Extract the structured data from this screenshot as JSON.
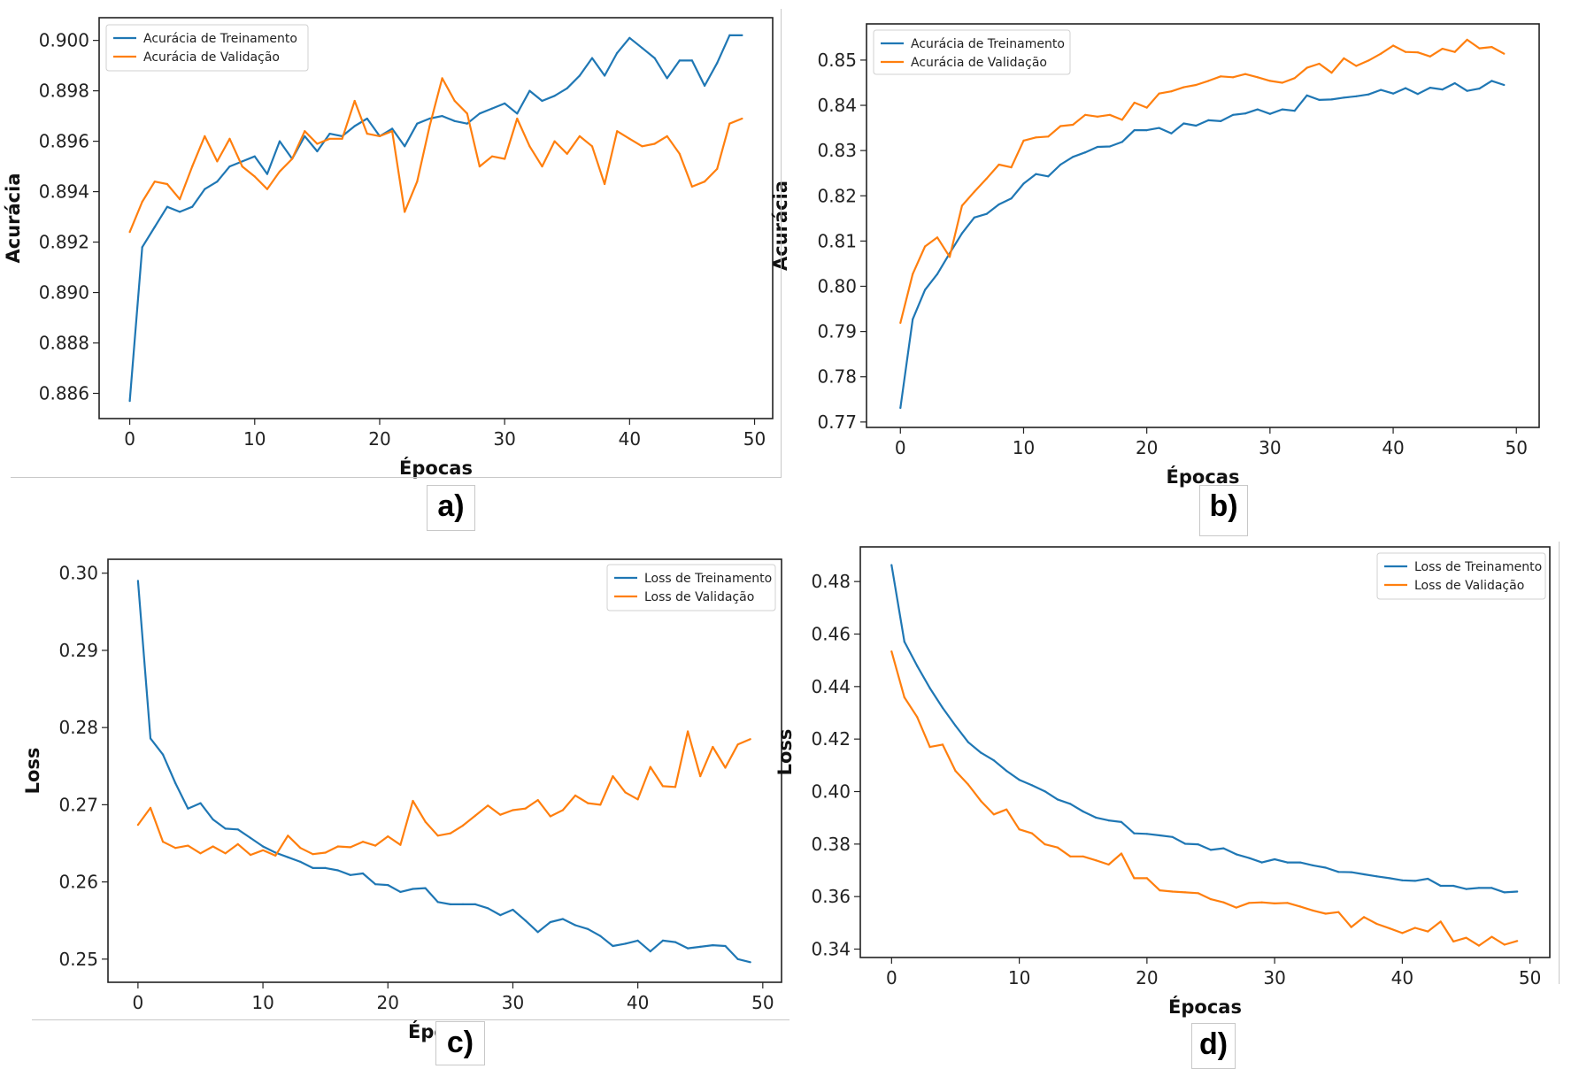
{
  "figure": {
    "panel_labels": [
      "a)",
      "b)",
      "c)",
      "d)"
    ]
  },
  "chart_data": [
    {
      "id": "a",
      "type": "line",
      "title": "",
      "xlabel": "Épocas",
      "ylabel": "Acurácia",
      "xlim": [
        -2.45,
        51.45
      ],
      "ylim": [
        0.885,
        0.9009
      ],
      "xticks": [
        0,
        10,
        20,
        30,
        40,
        50
      ],
      "xtick_labels": [
        "0",
        "10",
        "20",
        "30",
        "40",
        "50"
      ],
      "yticks": [
        0.886,
        0.888,
        0.89,
        0.892,
        0.894,
        0.896,
        0.898,
        0.9
      ],
      "ytick_labels": [
        "0.886",
        "0.888",
        "0.890",
        "0.892",
        "0.894",
        "0.896",
        "0.898",
        "0.900"
      ],
      "grid": false,
      "legend_position": "top-left",
      "x": [
        0,
        1,
        2,
        3,
        4,
        5,
        6,
        7,
        8,
        9,
        10,
        11,
        12,
        13,
        14,
        15,
        16,
        17,
        18,
        19,
        20,
        21,
        22,
        23,
        24,
        25,
        26,
        27,
        28,
        29,
        30,
        31,
        32,
        33,
        34,
        35,
        36,
        37,
        38,
        39,
        40,
        41,
        42,
        43,
        44,
        45,
        46,
        47,
        48,
        49
      ],
      "series": [
        {
          "name": "Acurácia de Treinamento",
          "color": "#1f77b4",
          "values": [
            0.8857,
            0.8918,
            0.8926,
            0.8934,
            0.8932,
            0.8934,
            0.8941,
            0.8944,
            0.895,
            0.8952,
            0.8954,
            0.8947,
            0.896,
            0.8953,
            0.8962,
            0.8956,
            0.8963,
            0.8962,
            0.8966,
            0.8969,
            0.8962,
            0.8965,
            0.8958,
            0.8967,
            0.8969,
            0.897,
            0.8968,
            0.8967,
            0.8971,
            0.8973,
            0.8975,
            0.8971,
            0.898,
            0.8976,
            0.8978,
            0.8981,
            0.8986,
            0.8993,
            0.8986,
            0.8995,
            0.9001,
            0.8997,
            0.8993,
            0.8985,
            0.8992,
            0.8992,
            0.8982,
            0.8991,
            0.9002,
            0.9002
          ]
        },
        {
          "name": "Acurácia de Validação",
          "color": "#ff7f0e",
          "values": [
            0.8924,
            0.8936,
            0.8944,
            0.8943,
            0.8937,
            0.895,
            0.8962,
            0.8952,
            0.8961,
            0.895,
            0.8946,
            0.8941,
            0.8948,
            0.8953,
            0.8964,
            0.8959,
            0.8961,
            0.8961,
            0.8976,
            0.8963,
            0.8962,
            0.8964,
            0.8932,
            0.8944,
            0.8966,
            0.8985,
            0.8976,
            0.8971,
            0.895,
            0.8954,
            0.8953,
            0.8969,
            0.8958,
            0.895,
            0.896,
            0.8955,
            0.8962,
            0.8958,
            0.8943,
            0.8964,
            0.8961,
            0.8958,
            0.8959,
            0.8962,
            0.8955,
            0.8942,
            0.8944,
            0.8949,
            0.8967,
            0.8969
          ]
        }
      ]
    },
    {
      "id": "b",
      "type": "line",
      "title": "",
      "xlabel": "Épocas",
      "ylabel": "Acurácia",
      "xlim": [
        -2.75,
        51.85
      ],
      "ylim": [
        0.7688,
        0.858
      ],
      "xticks": [
        0,
        10,
        20,
        30,
        40,
        50
      ],
      "xtick_labels": [
        "0",
        "10",
        "20",
        "30",
        "40",
        "50"
      ],
      "yticks": [
        0.77,
        0.78,
        0.79,
        0.8,
        0.81,
        0.82,
        0.83,
        0.84,
        0.85
      ],
      "ytick_labels": [
        "0.77",
        "0.78",
        "0.79",
        "0.80",
        "0.81",
        "0.82",
        "0.83",
        "0.84",
        "0.85"
      ],
      "grid": false,
      "legend_position": "top-left",
      "x": [
        0,
        1,
        2,
        3,
        4,
        5,
        6,
        7,
        8,
        9,
        10,
        11,
        12,
        13,
        14,
        15,
        16,
        17,
        18,
        19,
        20,
        21,
        22,
        23,
        24,
        25,
        26,
        27,
        28,
        29,
        30,
        31,
        32,
        33,
        34,
        35,
        36,
        37,
        38,
        39,
        40,
        41,
        42,
        43,
        44,
        45,
        46,
        47,
        48,
        49
      ],
      "series": [
        {
          "name": "Acurácia de Treinamento",
          "color": "#1f77b4",
          "values": [
            0.7731,
            0.7927,
            0.7992,
            0.8027,
            0.8073,
            0.8117,
            0.8152,
            0.816,
            0.8181,
            0.8194,
            0.8227,
            0.8248,
            0.8243,
            0.8269,
            0.8286,
            0.8296,
            0.8308,
            0.8309,
            0.8319,
            0.8345,
            0.8345,
            0.835,
            0.8338,
            0.836,
            0.8355,
            0.8367,
            0.8365,
            0.8379,
            0.8382,
            0.8391,
            0.8381,
            0.8391,
            0.8388,
            0.8422,
            0.8412,
            0.8413,
            0.8417,
            0.842,
            0.8424,
            0.8434,
            0.8426,
            0.8438,
            0.8425,
            0.8439,
            0.8435,
            0.8449,
            0.8432,
            0.8437,
            0.8454,
            0.8445
          ]
        },
        {
          "name": "Acurácia de Validação",
          "color": "#ff7f0e",
          "values": [
            0.7919,
            0.8027,
            0.8088,
            0.8108,
            0.8065,
            0.8178,
            0.8209,
            0.8238,
            0.8269,
            0.8263,
            0.8322,
            0.8329,
            0.8331,
            0.8354,
            0.8357,
            0.8379,
            0.8375,
            0.8379,
            0.8368,
            0.8406,
            0.8395,
            0.8426,
            0.8431,
            0.844,
            0.8445,
            0.8454,
            0.8464,
            0.8462,
            0.8469,
            0.8462,
            0.8454,
            0.845,
            0.846,
            0.8483,
            0.8492,
            0.8472,
            0.8504,
            0.8487,
            0.8499,
            0.8514,
            0.8532,
            0.8518,
            0.8517,
            0.8508,
            0.8525,
            0.8518,
            0.8545,
            0.8526,
            0.8529,
            0.8514
          ]
        }
      ]
    },
    {
      "id": "c",
      "type": "line",
      "title": "",
      "xlabel": "Épocas",
      "ylabel": "Loss",
      "xlim": [
        -2.4,
        51.5
      ],
      "ylim": [
        0.247,
        0.3018
      ],
      "xticks": [
        0,
        10,
        20,
        30,
        40,
        50
      ],
      "xtick_labels": [
        "0",
        "10",
        "20",
        "30",
        "40",
        "50"
      ],
      "yticks": [
        0.25,
        0.26,
        0.27,
        0.28,
        0.29,
        0.3
      ],
      "ytick_labels": [
        "0.25",
        "0.26",
        "0.27",
        "0.28",
        "0.29",
        "0.30"
      ],
      "grid": false,
      "legend_position": "top-right",
      "x": [
        0,
        1,
        2,
        3,
        4,
        5,
        6,
        7,
        8,
        9,
        10,
        11,
        12,
        13,
        14,
        15,
        16,
        17,
        18,
        19,
        20,
        21,
        22,
        23,
        24,
        25,
        26,
        27,
        28,
        29,
        30,
        31,
        32,
        33,
        34,
        35,
        36,
        37,
        38,
        39,
        40,
        41,
        42,
        43,
        44,
        45,
        46,
        47,
        48,
        49
      ],
      "series": [
        {
          "name": "Loss de Treinamento",
          "color": "#1f77b4",
          "values": [
            0.299,
            0.2786,
            0.2765,
            0.2728,
            0.2695,
            0.2702,
            0.2681,
            0.2669,
            0.2668,
            0.2657,
            0.2646,
            0.2638,
            0.2632,
            0.2626,
            0.2618,
            0.2618,
            0.2615,
            0.2609,
            0.2611,
            0.2597,
            0.2596,
            0.2587,
            0.2591,
            0.2592,
            0.2574,
            0.2571,
            0.2571,
            0.2571,
            0.2566,
            0.2557,
            0.2564,
            0.255,
            0.2535,
            0.2548,
            0.2552,
            0.2544,
            0.2539,
            0.253,
            0.2517,
            0.252,
            0.2524,
            0.251,
            0.2524,
            0.2522,
            0.2514,
            0.2516,
            0.2518,
            0.2517,
            0.25,
            0.2496
          ]
        },
        {
          "name": "Loss de Validação",
          "color": "#ff7f0e",
          "values": [
            0.2674,
            0.2696,
            0.2652,
            0.2644,
            0.2647,
            0.2637,
            0.2646,
            0.2637,
            0.2649,
            0.2635,
            0.2641,
            0.2634,
            0.266,
            0.2644,
            0.2636,
            0.2638,
            0.2646,
            0.2645,
            0.2652,
            0.2647,
            0.2659,
            0.2648,
            0.2705,
            0.2678,
            0.266,
            0.2663,
            0.2673,
            0.2686,
            0.2699,
            0.2687,
            0.2693,
            0.2695,
            0.2706,
            0.2685,
            0.2693,
            0.2712,
            0.2702,
            0.27,
            0.2737,
            0.2716,
            0.2707,
            0.2749,
            0.2724,
            0.2723,
            0.2795,
            0.2737,
            0.2775,
            0.2748,
            0.2778,
            0.2785
          ]
        }
      ]
    },
    {
      "id": "d",
      "type": "line",
      "title": "",
      "xlabel": "Épocas",
      "ylabel": "Loss",
      "xlim": [
        -2.45,
        51.55
      ],
      "ylim": [
        0.3368,
        0.4932
      ],
      "xticks": [
        0,
        10,
        20,
        30,
        40,
        50
      ],
      "xtick_labels": [
        "0",
        "10",
        "20",
        "30",
        "40",
        "50"
      ],
      "yticks": [
        0.34,
        0.36,
        0.38,
        0.4,
        0.42,
        0.44,
        0.46,
        0.48
      ],
      "ytick_labels": [
        "0.34",
        "0.36",
        "0.38",
        "0.40",
        "0.42",
        "0.44",
        "0.46",
        "0.48"
      ],
      "grid": false,
      "legend_position": "top-right",
      "x": [
        0,
        1,
        2,
        3,
        4,
        5,
        6,
        7,
        8,
        9,
        10,
        11,
        12,
        13,
        14,
        15,
        16,
        17,
        18,
        19,
        20,
        21,
        22,
        23,
        24,
        25,
        26,
        27,
        28,
        29,
        30,
        31,
        32,
        33,
        34,
        35,
        36,
        37,
        38,
        39,
        40,
        41,
        42,
        43,
        44,
        45,
        46,
        47,
        48,
        49
      ],
      "series": [
        {
          "name": "Loss de Treinamento",
          "color": "#1f77b4",
          "values": [
            0.4863,
            0.4571,
            0.4479,
            0.4394,
            0.4319,
            0.4251,
            0.4188,
            0.4148,
            0.4119,
            0.4079,
            0.4045,
            0.4024,
            0.4001,
            0.397,
            0.3953,
            0.3924,
            0.3901,
            0.389,
            0.3884,
            0.3841,
            0.3839,
            0.3833,
            0.3827,
            0.3801,
            0.3799,
            0.3778,
            0.3784,
            0.3761,
            0.3747,
            0.373,
            0.3742,
            0.373,
            0.373,
            0.3719,
            0.371,
            0.3694,
            0.3693,
            0.3685,
            0.3677,
            0.367,
            0.3662,
            0.366,
            0.3668,
            0.3641,
            0.3641,
            0.3629,
            0.3633,
            0.3633,
            0.3616,
            0.3619
          ]
        },
        {
          "name": "Loss de Validação",
          "color": "#ff7f0e",
          "values": [
            0.4534,
            0.4359,
            0.4284,
            0.417,
            0.4179,
            0.4079,
            0.4027,
            0.3964,
            0.3913,
            0.3932,
            0.3856,
            0.3841,
            0.3799,
            0.3787,
            0.3753,
            0.3753,
            0.3738,
            0.3722,
            0.3764,
            0.367,
            0.367,
            0.3624,
            0.3619,
            0.3616,
            0.3613,
            0.359,
            0.3578,
            0.3558,
            0.3576,
            0.3578,
            0.3574,
            0.3576,
            0.3562,
            0.3547,
            0.3535,
            0.3541,
            0.3484,
            0.3522,
            0.3496,
            0.3479,
            0.3461,
            0.3481,
            0.3467,
            0.3505,
            0.3429,
            0.3443,
            0.3413,
            0.3447,
            0.3417,
            0.3431
          ]
        }
      ]
    }
  ]
}
